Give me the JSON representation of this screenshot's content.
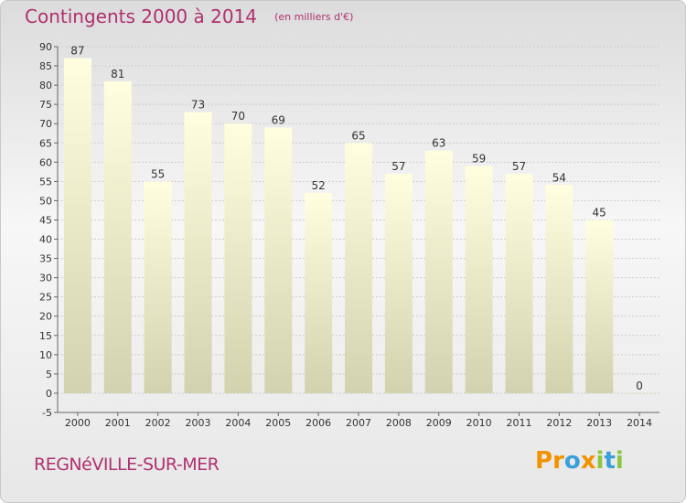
{
  "header": {
    "title": "Contingents 2000 à 2014",
    "subtitle": "(en milliers d'€)"
  },
  "footer": {
    "town": "REGNéVILLE-SUR-MER",
    "logo_letters": [
      "P",
      "r",
      "o",
      "x",
      "i",
      "t",
      "i"
    ]
  },
  "colors": {
    "title": "#b03070",
    "bar_top": "#ffffe0",
    "bar_bottom": "#d2d2ae",
    "logo": [
      "#f39200",
      "#f39200",
      "#3aa0dc",
      "#f39200",
      "#8cc63f",
      "#3aa0dc",
      "#8cc63f"
    ]
  },
  "chart_data": {
    "type": "bar",
    "categories": [
      "2000",
      "2001",
      "2002",
      "2003",
      "2004",
      "2005",
      "2006",
      "2007",
      "2008",
      "2009",
      "2010",
      "2011",
      "2012",
      "2013",
      "2014"
    ],
    "values": [
      87,
      81,
      55,
      73,
      70,
      69,
      52,
      65,
      57,
      63,
      59,
      57,
      54,
      45,
      0
    ],
    "ylim": [
      -5,
      90
    ],
    "yticks": [
      -5,
      0,
      5,
      10,
      15,
      20,
      25,
      30,
      35,
      40,
      45,
      50,
      55,
      60,
      65,
      70,
      75,
      80,
      85,
      90
    ],
    "grid": true,
    "data_labels": true,
    "legend": "none"
  }
}
